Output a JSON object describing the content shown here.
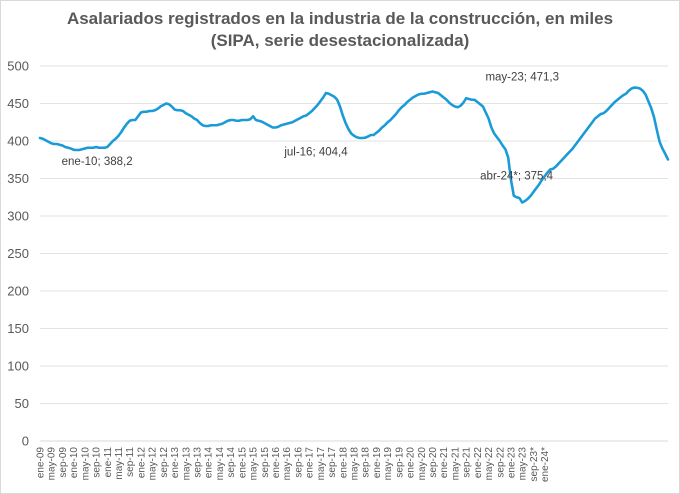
{
  "chart_data": {
    "type": "line",
    "title": "Asalariados registrados en la industria de la construcción, en miles",
    "subtitle": "(SIPA, serie desestacionalizada)",
    "xlabel": "",
    "ylabel": "",
    "ylim": [
      0,
      500
    ],
    "yticks": [
      0,
      50,
      100,
      150,
      200,
      250,
      300,
      350,
      400,
      450,
      500
    ],
    "grid": true,
    "legend": "none",
    "line_color": "#1a9bd7",
    "x_start": "ene-09",
    "x_end": "abr-24*",
    "xtick_labels": [
      "ene-09",
      "may-09",
      "sep-09",
      "ene-10",
      "may-10",
      "sep-10",
      "ene-11",
      "may-11",
      "sep-11",
      "ene-12",
      "may-12",
      "sep-12",
      "ene-13",
      "may-13",
      "sep-13",
      "ene-14",
      "may-14",
      "sep-14",
      "ene-15",
      "may-15",
      "sep-15",
      "ene-16",
      "may-16",
      "sep-16",
      "ene-17",
      "may-17",
      "sep-17",
      "ene-18",
      "may-18",
      "sep-18",
      "ene-19",
      "may-19",
      "sep-19",
      "ene-20",
      "may-20",
      "sep-20",
      "ene-21",
      "may-21",
      "sep-21",
      "ene-22",
      "may-22",
      "sep-22",
      "ene-23",
      "may-23",
      "sep-23*",
      "ene-24*"
    ],
    "series": [
      {
        "name": "Asalariados registrados (miles)",
        "values": [
          404,
          403,
          401,
          399,
          397,
          396,
          396,
          395,
          394,
          392,
          391,
          390,
          388.2,
          388,
          388,
          389,
          390,
          391,
          391,
          391,
          392,
          391,
          391,
          391,
          392,
          396,
          400,
          403,
          407,
          412,
          418,
          423,
          427,
          428,
          428,
          433,
          438,
          439,
          439,
          440,
          440,
          441,
          443,
          446,
          448,
          450,
          449,
          446,
          442,
          441,
          441,
          440,
          437,
          435,
          433,
          430,
          428,
          424,
          421,
          420,
          420,
          421,
          421,
          421,
          422,
          423,
          425,
          427,
          428,
          428,
          427,
          427,
          428,
          428,
          428,
          429,
          433,
          428,
          427,
          426,
          424,
          422,
          420,
          418,
          418,
          419,
          421,
          422,
          423,
          424,
          425,
          427,
          429,
          431,
          433,
          434,
          437,
          440,
          444,
          448,
          453,
          458,
          464,
          463,
          461,
          459,
          455,
          446,
          434,
          424,
          416,
          410,
          407,
          405,
          404,
          404,
          404.4,
          406,
          408,
          408,
          411,
          414,
          418,
          421,
          425,
          428,
          432,
          436,
          441,
          445,
          448,
          452,
          455,
          458,
          460,
          462,
          463,
          463,
          464,
          465,
          466,
          465,
          464,
          461,
          458,
          455,
          451,
          448,
          446,
          445,
          447,
          451,
          457,
          456,
          455,
          455,
          452,
          449,
          446,
          438,
          430,
          418,
          410,
          405,
          400,
          394,
          389,
          378,
          348,
          327,
          325,
          324,
          318,
          320,
          323,
          327,
          332,
          337,
          342,
          348,
          353,
          358,
          362,
          363,
          366,
          370,
          374,
          378,
          382,
          386,
          390,
          395,
          400,
          405,
          410,
          415,
          420,
          425,
          430,
          433,
          436,
          437,
          440,
          444,
          448,
          452,
          455,
          458,
          461,
          463,
          467,
          470,
          471.3,
          471,
          470,
          467,
          462,
          453,
          444,
          432,
          415,
          399,
          390,
          383,
          375.4
        ]
      }
    ],
    "annotations": [
      {
        "label": "ene-10; 388,2",
        "x": "ene-10",
        "value": 388.2
      },
      {
        "label": "jul-16; 404,4",
        "x": "jul-16",
        "value": 404.4
      },
      {
        "label": "may-23; 471,3",
        "x": "may-23",
        "value": 471.3
      },
      {
        "label": "abr-24*; 375,4",
        "x": "abr-24*",
        "value": 375.4
      }
    ]
  }
}
